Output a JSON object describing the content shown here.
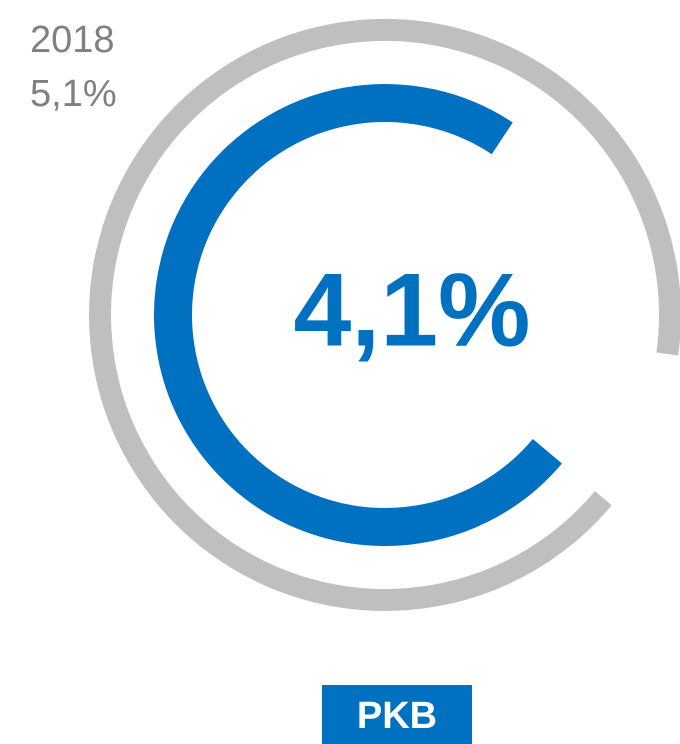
{
  "chart_data": {
    "type": "radial_bar",
    "categories": [
      "PKB"
    ],
    "ylim": [
      0,
      5.6
    ],
    "series": [
      {
        "name": "2018",
        "color": "#bfbfbf",
        "values": [
          5.1
        ],
        "value_labels": [
          "5,1%"
        ]
      },
      {
        "color": "#0070c0",
        "values": [
          4.1
        ],
        "value_labels": [
          "4,1%"
        ]
      }
    ]
  }
}
